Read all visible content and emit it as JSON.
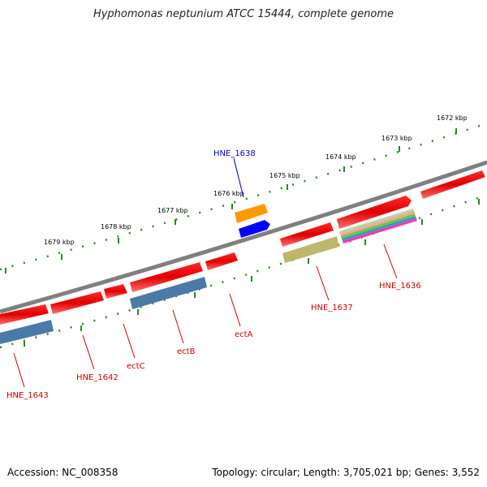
{
  "title": "Hyphomonas neptunium ATCC 15444, complete genome",
  "footer": {
    "accession": "Accession: NC_008358",
    "stats": "Topology: circular; Length: 3,705,021 bp; Genes: 3,552"
  },
  "scale_labels": [
    "1672 kbp",
    "1673 kbp",
    "1674 kbp",
    "1675 kbp",
    "1676 kbp",
    "1677 kbp",
    "1678 kbp",
    "1679 kbp"
  ],
  "genes": [
    {
      "name": "HNE_1638",
      "color": "#0000cc"
    },
    {
      "name": "HNE_1636",
      "color": "#cc0000"
    },
    {
      "name": "HNE_1637",
      "color": "#cc0000"
    },
    {
      "name": "ectA",
      "color": "#cc0000"
    },
    {
      "name": "ectB",
      "color": "#cc0000"
    },
    {
      "name": "ectC",
      "color": "#cc0000"
    },
    {
      "name": "HNE_1642",
      "color": "#cc0000"
    },
    {
      "name": "HNE_1643",
      "color": "#cc0000"
    }
  ],
  "colors": {
    "backbone": "#808080",
    "cds": "#ff0000",
    "gene_feature": "#4a7aa8",
    "trna": "#ff9900",
    "blue_feature": "#0000ff",
    "olive_feature": "#bdb76b",
    "tick": "#228b22"
  }
}
